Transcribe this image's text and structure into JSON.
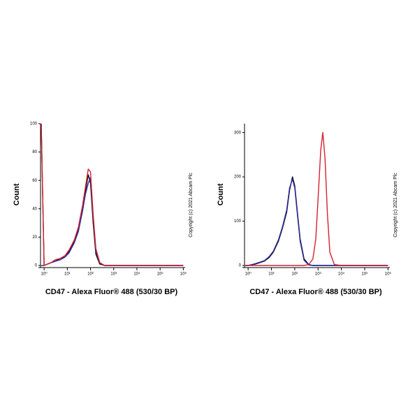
{
  "chart_data": [
    {
      "type": "line",
      "log_x": true,
      "ylabel": "Count",
      "xlabel": "CD47 - Alexa Fluor® 488 (530/30 BP)",
      "note": "Copyright (c) 2021 Abcam Plc",
      "xlim": [
        0.7,
        1200000
      ],
      "ylim": [
        0,
        100
      ],
      "xticks": [
        {
          "value": 1,
          "label": "10⁰"
        },
        {
          "value": 10,
          "label": "10¹"
        },
        {
          "value": 100,
          "label": "10²"
        },
        {
          "value": 1000,
          "label": "10³"
        },
        {
          "value": 10000,
          "label": "10⁴"
        },
        {
          "value": 100000,
          "label": "10⁵"
        },
        {
          "value": 1000000,
          "label": "10⁶"
        }
      ],
      "yticks": [
        0,
        20,
        40,
        60,
        80,
        100
      ],
      "x": [
        0.75,
        1,
        2,
        3,
        5,
        8,
        12,
        20,
        30,
        45,
        60,
        80,
        100,
        130,
        170,
        250,
        400,
        1000,
        10000,
        100000,
        1000000
      ],
      "series": [
        {
          "color": "#111111",
          "values": [
            100,
            0,
            2,
            3,
            5,
            6,
            10,
            17,
            25,
            40,
            52,
            64,
            58,
            30,
            8,
            1,
            0,
            0,
            0,
            0,
            0
          ]
        },
        {
          "color": "#2a2aa0",
          "values": [
            0,
            0,
            2,
            3,
            4,
            6,
            9,
            16,
            24,
            38,
            50,
            58,
            62,
            34,
            10,
            2,
            0,
            0,
            0,
            0,
            0
          ]
        },
        {
          "color": "#d42030",
          "values": [
            100,
            0,
            2,
            4,
            5,
            7,
            11,
            18,
            27,
            42,
            55,
            68,
            66,
            36,
            12,
            2,
            0,
            0,
            0,
            0,
            0
          ]
        }
      ]
    },
    {
      "type": "line",
      "log_x": true,
      "ylabel": "Count",
      "xlabel": "CD47 - Alexa Fluor® 488 (530/30 BP)",
      "note": "Copyright (c) 2021 Abcam Plc",
      "xlim": [
        0.7,
        1200000
      ],
      "ylim": [
        0,
        320
      ],
      "xticks": [
        {
          "value": 1,
          "label": "10⁰"
        },
        {
          "value": 10,
          "label": "10¹"
        },
        {
          "value": 100,
          "label": "10²"
        },
        {
          "value": 1000,
          "label": "10³"
        },
        {
          "value": 10000,
          "label": "10⁴"
        },
        {
          "value": 100000,
          "label": "10⁵"
        },
        {
          "value": 1000000,
          "label": "10⁶"
        }
      ],
      "yticks": [
        0,
        100,
        200,
        300
      ],
      "x": [
        0.75,
        1,
        2,
        3,
        5,
        8,
        12,
        20,
        30,
        45,
        60,
        80,
        100,
        130,
        170,
        250,
        400,
        600,
        800,
        1000,
        1300,
        1600,
        2000,
        2500,
        3200,
        5000,
        10000,
        100000,
        1000000
      ],
      "series": [
        {
          "color": "#111111",
          "values": [
            0,
            0,
            3,
            6,
            10,
            18,
            30,
            55,
            85,
            120,
            170,
            200,
            180,
            120,
            60,
            15,
            2,
            0,
            0,
            0,
            0,
            0,
            0,
            0,
            0,
            0,
            0,
            0,
            0
          ]
        },
        {
          "color": "#2a2aa0",
          "values": [
            0,
            0,
            4,
            7,
            11,
            20,
            32,
            58,
            88,
            125,
            175,
            195,
            175,
            115,
            55,
            12,
            1,
            0,
            0,
            0,
            0,
            0,
            0,
            0,
            0,
            0,
            0,
            0,
            0
          ]
        },
        {
          "color": "#d42030",
          "values": [
            0,
            0,
            0,
            0,
            0,
            0,
            0,
            0,
            0,
            0,
            0,
            0,
            0,
            0,
            0,
            0,
            2,
            15,
            60,
            150,
            260,
            300,
            240,
            120,
            30,
            2,
            0,
            0,
            0
          ]
        }
      ]
    }
  ]
}
